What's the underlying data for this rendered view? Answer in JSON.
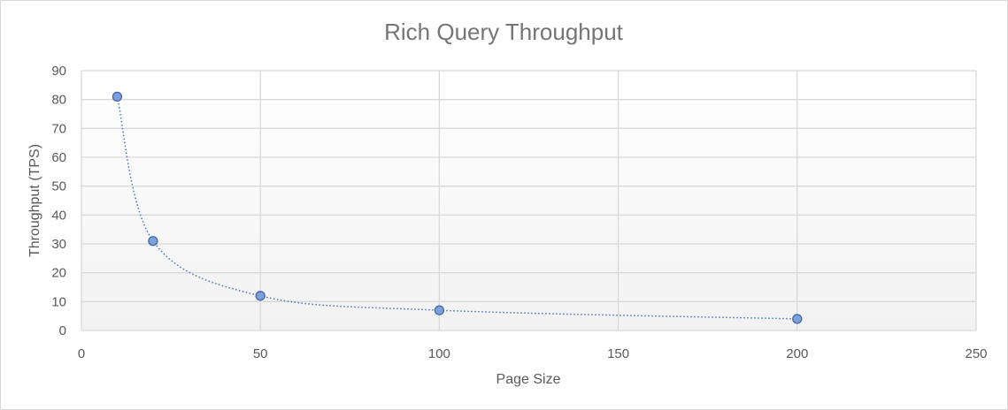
{
  "chart_data": {
    "type": "scatter",
    "title": "Rich Query Throughput",
    "xlabel": "Page Size",
    "ylabel": "Throughput (TPS)",
    "xlim": [
      0,
      250
    ],
    "ylim": [
      0,
      90
    ],
    "x_ticks": [
      "0",
      "50",
      "100",
      "150",
      "200",
      "250"
    ],
    "y_ticks": [
      "0",
      "10",
      "20",
      "30",
      "40",
      "50",
      "60",
      "70",
      "80",
      "90"
    ],
    "grid": true,
    "legend": "none",
    "trendline": "smooth dotted",
    "series": [
      {
        "x": [
          10,
          20,
          50,
          100,
          200
        ],
        "y": [
          81,
          31,
          12,
          7,
          4
        ]
      }
    ],
    "colors": {
      "marker_fill": "#7da0d8",
      "marker_stroke": "#3f66b0",
      "trendline": "#4472c4",
      "grid": "#d9d9d9",
      "plot_bg_top": "#ffffff",
      "plot_bg_bottom": "#f2f2f2"
    }
  }
}
